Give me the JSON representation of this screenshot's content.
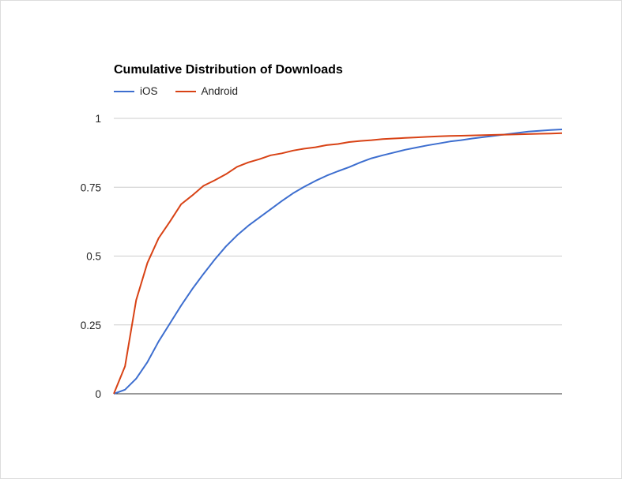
{
  "chart_data": {
    "type": "line",
    "title": "Cumulative Distribution of Downloads",
    "xlabel": "",
    "ylabel": "",
    "ylim": [
      0,
      1
    ],
    "xlim": [
      0,
      40
    ],
    "yticks": [
      {
        "value": 0,
        "label": "0"
      },
      {
        "value": 0.25,
        "label": "0.25"
      },
      {
        "value": 0.5,
        "label": "0.5"
      },
      {
        "value": 0.75,
        "label": "0.75"
      },
      {
        "value": 1,
        "label": "1"
      }
    ],
    "grid": true,
    "legend_position": "top-left",
    "x": [
      0,
      1,
      2,
      3,
      4,
      5,
      6,
      7,
      8,
      9,
      10,
      11,
      12,
      13,
      14,
      15,
      16,
      17,
      18,
      19,
      20,
      21,
      22,
      23,
      24,
      25,
      26,
      27,
      28,
      29,
      30,
      31,
      32,
      33,
      34,
      35,
      36,
      37,
      38,
      39,
      40
    ],
    "series": [
      {
        "name": "iOS",
        "color": "#3d6ecf",
        "values": [
          0,
          0.015,
          0.055,
          0.115,
          0.19,
          0.255,
          0.32,
          0.38,
          0.435,
          0.487,
          0.535,
          0.575,
          0.61,
          0.64,
          0.67,
          0.7,
          0.728,
          0.752,
          0.773,
          0.792,
          0.808,
          0.823,
          0.84,
          0.855,
          0.866,
          0.876,
          0.886,
          0.894,
          0.902,
          0.909,
          0.916,
          0.921,
          0.927,
          0.932,
          0.937,
          0.942,
          0.947,
          0.952,
          0.955,
          0.958,
          0.96
        ]
      },
      {
        "name": "Android",
        "color": "#d84215",
        "values": [
          0,
          0.1,
          0.34,
          0.475,
          0.565,
          0.625,
          0.688,
          0.72,
          0.755,
          0.775,
          0.797,
          0.824,
          0.84,
          0.852,
          0.866,
          0.873,
          0.883,
          0.89,
          0.895,
          0.903,
          0.907,
          0.914,
          0.918,
          0.921,
          0.925,
          0.927,
          0.929,
          0.931,
          0.933,
          0.935,
          0.936,
          0.937,
          0.938,
          0.939,
          0.94,
          0.941,
          0.942,
          0.943,
          0.944,
          0.945,
          0.946
        ]
      }
    ]
  }
}
